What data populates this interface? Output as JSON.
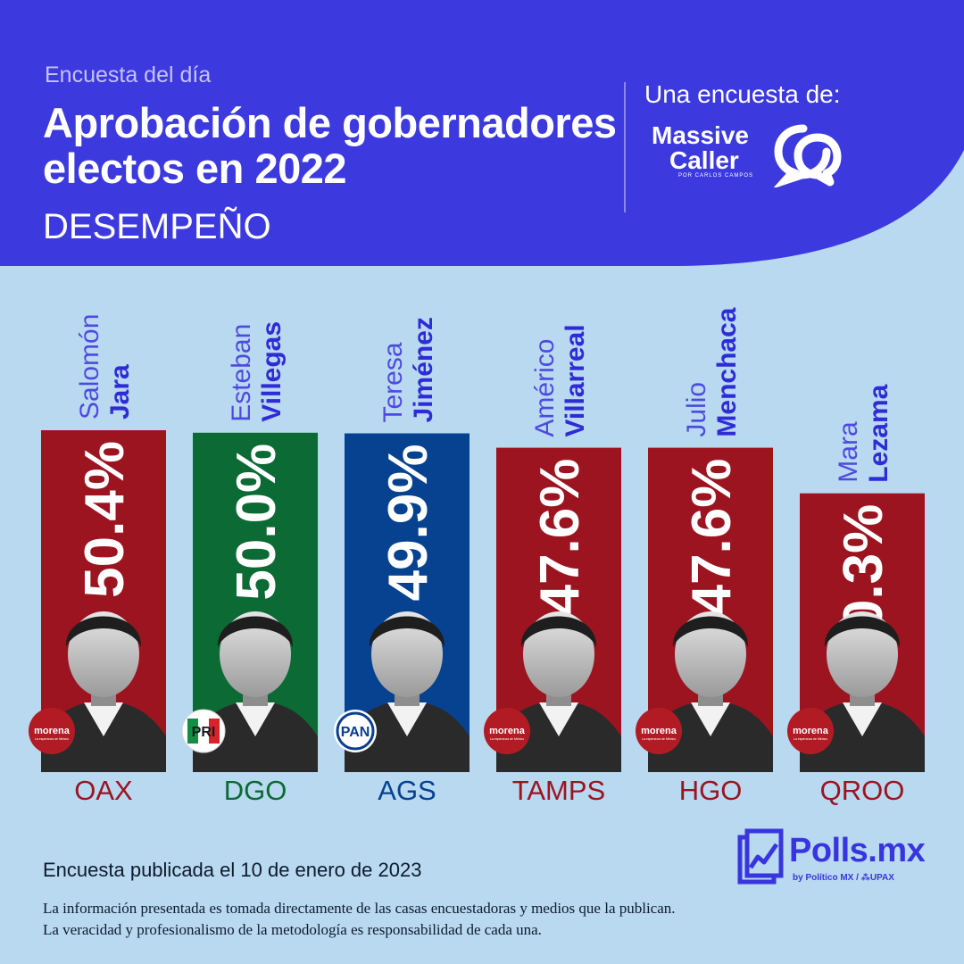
{
  "header": {
    "kicker": "Encuesta del día",
    "title": "Aprobación de gobernadores electos en 2022",
    "subtitle": "DESEMPEÑO",
    "source_label": "Una encuesta de:",
    "pollster": {
      "line1": "Massive",
      "line2": "Caller",
      "tagline": "POR CARLOS CAMPOS",
      "icon": "speech-bubbles-icon"
    }
  },
  "colors": {
    "header_bg": "#3c3adf",
    "page_bg": "#b8d9f0",
    "morena": "#9b1420",
    "pri": "#0c6a34",
    "pan": "#06428f",
    "first_name": "#4e4ae0",
    "last_name": "#2f2bd6"
  },
  "chart_data": {
    "type": "bar",
    "categories": [
      "OAX",
      "DGO",
      "AGS",
      "TAMPS",
      "HGO",
      "QROO"
    ],
    "first_names": [
      "Salomón",
      "Esteban",
      "Teresa",
      "Américo",
      "Julio",
      "Mara"
    ],
    "last_names": [
      "Jara",
      "Villegas",
      "Jiménez",
      "Villarreal",
      "Menchaca",
      "Lezama"
    ],
    "parties": [
      "morena",
      "PRI",
      "PAN",
      "morena",
      "morena",
      "morena"
    ],
    "value_labels": [
      "50.4%",
      "50.0%",
      "49.9%",
      "47.6%",
      "47.6%",
      "40.3%"
    ],
    "series": [
      {
        "values": [
          50.4,
          50.0,
          49.9,
          47.6,
          47.6,
          40.3
        ]
      }
    ],
    "party_logo_text": {
      "morena": {
        "name": "morena",
        "tagline": "La esperanza de México"
      },
      "PRI": {
        "name": "PRI"
      },
      "PAN": {
        "name": "PAN"
      }
    },
    "title": "",
    "xlabel": "",
    "ylabel": "",
    "ylim": [
      0,
      52
    ],
    "grid": false,
    "legend": "none"
  },
  "footer": {
    "date_note": "Encuesta publicada el 10 de enero de 2023",
    "disclaimer_1": "La información presentada es tomada directamente de las casas encuestadoras y medios que la publican.",
    "disclaimer_2": "La veracidad y profesionalismo de la metodología es responsabilidad de cada una.",
    "brand": {
      "name": "Polls.mx",
      "byline": "by Político MX / ⁂UPAX",
      "icon": "polls-chart-icon"
    }
  }
}
